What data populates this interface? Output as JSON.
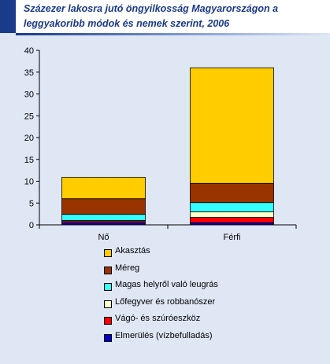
{
  "title": "Százezer lakosra  jutó öngyilkosság Magyarországon a leggyakoribb módok és nemek szerint, 2006",
  "chart_data": {
    "type": "bar",
    "stacked": true,
    "categories": [
      "Nő",
      "Férfi"
    ],
    "ylim": [
      0,
      40
    ],
    "yticks": [
      0,
      5,
      10,
      15,
      20,
      25,
      30,
      35,
      40
    ],
    "grid": false,
    "legend_position": "bottom",
    "series": [
      {
        "name": "Elmerülés (vízbefulladás)",
        "color": "#0000cc",
        "values": [
          0.5,
          0.5
        ]
      },
      {
        "name": "Vágó- és szúróeszköz",
        "color": "#ff0000",
        "values": [
          0.3,
          1.2
        ]
      },
      {
        "name": "Lőfegyver és robbanószer",
        "color": "#ffffcc",
        "values": [
          0.2,
          1.3
        ]
      },
      {
        "name": "Magas helyről való leugrás",
        "color": "#33ffff",
        "values": [
          1.4,
          2.1
        ]
      },
      {
        "name": "Méreg",
        "color": "#993300",
        "values": [
          3.6,
          4.4
        ]
      },
      {
        "name": "Akasztás",
        "color": "#ffcc00",
        "values": [
          4.9,
          26.5
        ]
      }
    ]
  },
  "legend_order": [
    "Akasztás",
    "Méreg",
    "Magas helyről való leugrás",
    "Lőfegyver és robbanószer",
    "Vágó- és szúróeszköz",
    "Elmerülés (vízbefulladás)"
  ]
}
